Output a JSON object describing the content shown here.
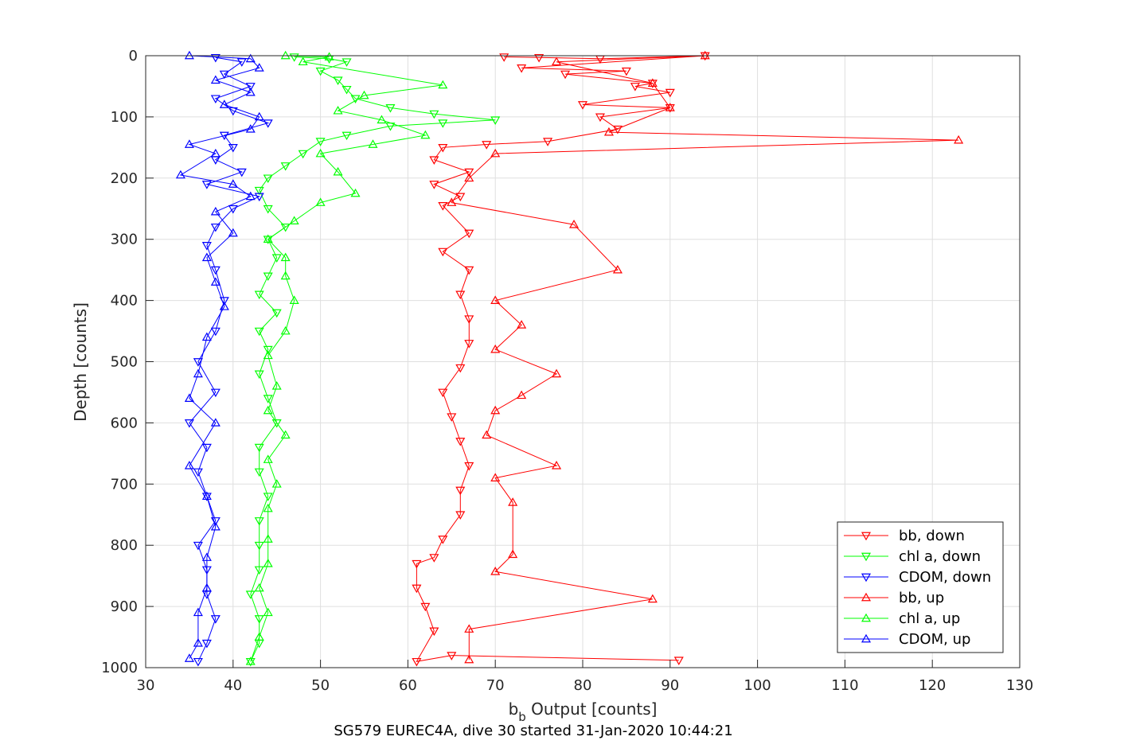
{
  "chart_data": {
    "type": "scatter",
    "xlabel_main": "b",
    "xlabel_sub": "b",
    "xlabel_rest": " Output [counts]",
    "ylabel": "Depth [counts]",
    "footer": "SG579 EUREC4A, dive 30 started 31-Jan-2020 10:44:21",
    "xlim": [
      30,
      130
    ],
    "ylim": [
      0,
      1000
    ],
    "y_reversed": true,
    "grid": true,
    "legend_position": "bottom-right",
    "xticks": [
      "30",
      "40",
      "50",
      "60",
      "70",
      "80",
      "90",
      "100",
      "110",
      "120",
      "130"
    ],
    "yticks": [
      "0",
      "100",
      "200",
      "300",
      "400",
      "500",
      "600",
      "700",
      "800",
      "900",
      "1000"
    ],
    "colors": {
      "bb": "#ff0000",
      "chl": "#00ff00",
      "cdom": "#0000ff"
    },
    "series": [
      {
        "name": "bb, down",
        "color": "#ff0000",
        "marker": "triangle-down",
        "points": [
          [
            71,
            2
          ],
          [
            75,
            3
          ],
          [
            82,
            5
          ],
          [
            94,
            0
          ],
          [
            73,
            20
          ],
          [
            85,
            25
          ],
          [
            78,
            30
          ],
          [
            88,
            45
          ],
          [
            86,
            50
          ],
          [
            90,
            60
          ],
          [
            80,
            80
          ],
          [
            90,
            85
          ],
          [
            82,
            100
          ],
          [
            84,
            120
          ],
          [
            76,
            140
          ],
          [
            69,
            145
          ],
          [
            64,
            150
          ],
          [
            63,
            170
          ],
          [
            67,
            190
          ],
          [
            63,
            210
          ],
          [
            66,
            230
          ],
          [
            64,
            245
          ],
          [
            67,
            290
          ],
          [
            64,
            320
          ],
          [
            67,
            350
          ],
          [
            66,
            390
          ],
          [
            67,
            430
          ],
          [
            67,
            470
          ],
          [
            66,
            510
          ],
          [
            64,
            550
          ],
          [
            65,
            590
          ],
          [
            66,
            630
          ],
          [
            67,
            670
          ],
          [
            66,
            710
          ],
          [
            66,
            750
          ],
          [
            64,
            790
          ],
          [
            63,
            820
          ],
          [
            61,
            830
          ],
          [
            61,
            870
          ],
          [
            62,
            900
          ],
          [
            63,
            940
          ],
          [
            61,
            990
          ],
          [
            65,
            980
          ],
          [
            91,
            988
          ]
        ]
      },
      {
        "name": "chl a, down",
        "color": "#00ff00",
        "marker": "triangle-down",
        "points": [
          [
            47,
            2
          ],
          [
            51,
            5
          ],
          [
            53,
            10
          ],
          [
            50,
            25
          ],
          [
            52,
            40
          ],
          [
            53,
            55
          ],
          [
            54,
            70
          ],
          [
            58,
            85
          ],
          [
            63,
            95
          ],
          [
            70,
            105
          ],
          [
            64,
            110
          ],
          [
            58,
            115
          ],
          [
            53,
            130
          ],
          [
            50,
            140
          ],
          [
            48,
            160
          ],
          [
            46,
            180
          ],
          [
            44,
            200
          ],
          [
            43,
            220
          ],
          [
            44,
            250
          ],
          [
            46,
            280
          ],
          [
            44,
            300
          ],
          [
            45,
            330
          ],
          [
            44,
            360
          ],
          [
            43,
            390
          ],
          [
            45,
            420
          ],
          [
            43,
            450
          ],
          [
            44,
            480
          ],
          [
            43,
            520
          ],
          [
            44,
            560
          ],
          [
            45,
            600
          ],
          [
            43,
            640
          ],
          [
            43,
            680
          ],
          [
            44,
            720
          ],
          [
            43,
            760
          ],
          [
            43,
            800
          ],
          [
            43,
            840
          ],
          [
            42,
            880
          ],
          [
            43,
            920
          ],
          [
            43,
            960
          ],
          [
            42,
            990
          ]
        ]
      },
      {
        "name": "CDOM, down",
        "color": "#0000ff",
        "marker": "triangle-down",
        "points": [
          [
            38,
            3
          ],
          [
            41,
            10
          ],
          [
            39,
            30
          ],
          [
            42,
            50
          ],
          [
            38,
            70
          ],
          [
            40,
            90
          ],
          [
            44,
            110
          ],
          [
            39,
            130
          ],
          [
            40,
            150
          ],
          [
            38,
            170
          ],
          [
            41,
            190
          ],
          [
            37,
            210
          ],
          [
            43,
            230
          ],
          [
            40,
            250
          ],
          [
            38,
            280
          ],
          [
            37,
            310
          ],
          [
            38,
            350
          ],
          [
            39,
            400
          ],
          [
            38,
            450
          ],
          [
            36,
            500
          ],
          [
            38,
            550
          ],
          [
            35,
            600
          ],
          [
            37,
            640
          ],
          [
            36,
            680
          ],
          [
            37,
            720
          ],
          [
            38,
            760
          ],
          [
            36,
            800
          ],
          [
            37,
            840
          ],
          [
            37,
            880
          ],
          [
            38,
            920
          ],
          [
            37,
            960
          ],
          [
            36,
            990
          ]
        ]
      },
      {
        "name": "bb, up",
        "color": "#ff0000",
        "marker": "triangle-up",
        "points": [
          [
            94,
            0
          ],
          [
            77,
            10
          ],
          [
            88,
            45
          ],
          [
            90,
            85
          ],
          [
            83,
            125
          ],
          [
            123,
            138
          ],
          [
            70,
            160
          ],
          [
            67,
            200
          ],
          [
            65,
            240
          ],
          [
            79,
            276
          ],
          [
            84,
            350
          ],
          [
            70,
            400
          ],
          [
            73,
            440
          ],
          [
            70,
            480
          ],
          [
            77,
            520
          ],
          [
            73,
            555
          ],
          [
            70,
            580
          ],
          [
            69,
            620
          ],
          [
            77,
            670
          ],
          [
            70,
            690
          ],
          [
            72,
            730
          ],
          [
            72,
            815
          ],
          [
            70,
            843
          ],
          [
            88,
            888
          ],
          [
            67,
            937
          ],
          [
            67,
            987
          ]
        ]
      },
      {
        "name": "chl a, up",
        "color": "#00ff00",
        "marker": "triangle-up",
        "points": [
          [
            46,
            0
          ],
          [
            51,
            2
          ],
          [
            48,
            10
          ],
          [
            64,
            48
          ],
          [
            55,
            65
          ],
          [
            52,
            90
          ],
          [
            57,
            105
          ],
          [
            62,
            130
          ],
          [
            56,
            145
          ],
          [
            50,
            160
          ],
          [
            52,
            190
          ],
          [
            54,
            225
          ],
          [
            50,
            240
          ],
          [
            47,
            270
          ],
          [
            44,
            300
          ],
          [
            46,
            330
          ],
          [
            46,
            360
          ],
          [
            47,
            400
          ],
          [
            46,
            450
          ],
          [
            44,
            490
          ],
          [
            45,
            540
          ],
          [
            44,
            580
          ],
          [
            46,
            620
          ],
          [
            44,
            660
          ],
          [
            45,
            700
          ],
          [
            44,
            740
          ],
          [
            44,
            790
          ],
          [
            44,
            830
          ],
          [
            43,
            870
          ],
          [
            44,
            910
          ],
          [
            43,
            950
          ],
          [
            42,
            990
          ]
        ]
      },
      {
        "name": "CDOM, up",
        "color": "#0000ff",
        "marker": "triangle-up",
        "points": [
          [
            35,
            0
          ],
          [
            42,
            5
          ],
          [
            43,
            20
          ],
          [
            38,
            40
          ],
          [
            42,
            60
          ],
          [
            39,
            80
          ],
          [
            43,
            100
          ],
          [
            42,
            120
          ],
          [
            35,
            145
          ],
          [
            38,
            160
          ],
          [
            34,
            195
          ],
          [
            40,
            210
          ],
          [
            42,
            230
          ],
          [
            38,
            255
          ],
          [
            40,
            290
          ],
          [
            37,
            330
          ],
          [
            38,
            370
          ],
          [
            39,
            410
          ],
          [
            37,
            460
          ],
          [
            36,
            520
          ],
          [
            35,
            560
          ],
          [
            38,
            600
          ],
          [
            35,
            670
          ],
          [
            37,
            720
          ],
          [
            38,
            770
          ],
          [
            37,
            820
          ],
          [
            37,
            870
          ],
          [
            36,
            910
          ],
          [
            36,
            960
          ],
          [
            35,
            985
          ]
        ]
      }
    ]
  }
}
